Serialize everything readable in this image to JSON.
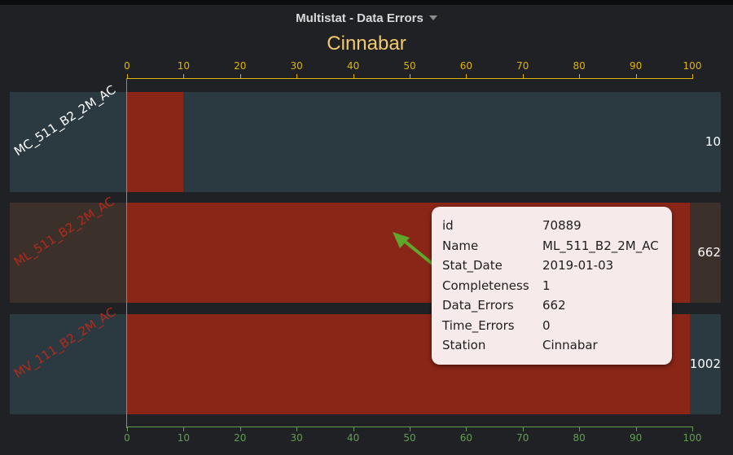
{
  "panel": {
    "title": "Multistat - Data Errors"
  },
  "chart_title": "Cinnabar",
  "axis_ticks": [
    "0",
    "10",
    "20",
    "30",
    "40",
    "50",
    "60",
    "70",
    "80",
    "90",
    "100"
  ],
  "colors": {
    "panel_bg": "#1f2124",
    "row_bg": "#2b3a40",
    "row_bg_selected": "#3b302a",
    "bar_red": "#8a2617",
    "top_axis": "#e0b400",
    "bottom_axis": "#629e51",
    "title_gold": "#f2c96d",
    "label_red": "#b42a1b",
    "arrow": "#5fa62d"
  },
  "rows": [
    {
      "label": "MC_511_B2_2M_AC",
      "value_text": "10",
      "bar_fraction": 0.1,
      "label_color": "white"
    },
    {
      "label": "ML_511_B2_2M_AC",
      "value_text": "662",
      "bar_fraction": 0.997,
      "label_color": "red"
    },
    {
      "label": "MV_111_B2_2M_AC",
      "value_text": "1002",
      "bar_fraction": 0.997,
      "label_color": "red"
    }
  ],
  "tooltip": {
    "rows": [
      {
        "key": "id",
        "value": "70889"
      },
      {
        "key": "Name",
        "value": "ML_511_B2_2M_AC"
      },
      {
        "key": "Stat_Date",
        "value": "2019-01-03"
      },
      {
        "key": "Completeness",
        "value": "1"
      },
      {
        "key": "Data_Errors",
        "value": "662"
      },
      {
        "key": "Time_Errors",
        "value": "0"
      },
      {
        "key": "Station",
        "value": "Cinnabar"
      }
    ]
  }
}
